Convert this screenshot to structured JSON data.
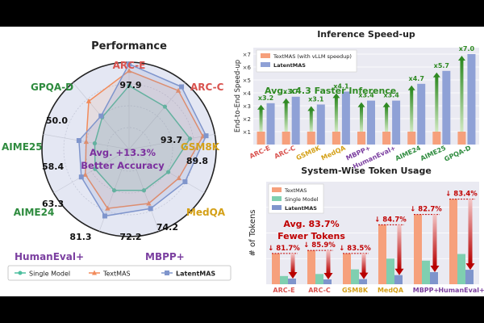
{
  "chart_data": [
    {
      "type": "radar",
      "title": "Performance",
      "categories": [
        "ARC-E",
        "ARC-C",
        "GSM8K",
        "MedQA",
        "MBPP+",
        "HumanEval+",
        "AIME24",
        "AIME25",
        "GPQA-D"
      ],
      "category_colors": [
        "#d9534f",
        "#d9534f",
        "#d4a017",
        "#d4a017",
        "#7b3fa0",
        "#7b3fa0",
        "#2e8b3e",
        "#2e8b3e",
        "#2e8b3e"
      ],
      "rlim": [
        0,
        100
      ],
      "series": [
        {
          "name": "Single Model",
          "color": "#4dbf9f",
          "marker": "circle",
          "values": [
            73,
            64,
            71,
            52,
            50,
            50,
            45,
            40,
            48
          ]
        },
        {
          "name": "TextMAS",
          "color": "#f28b5b",
          "marker": "triangle",
          "values": [
            90,
            88,
            86,
            66,
            66,
            72,
            58,
            50,
            72
          ]
        },
        {
          "name": "LatentMAS",
          "color": "#7f95cc",
          "marker": "square",
          "values": [
            97.9,
            93.7,
            89.8,
            74.2,
            72.2,
            81.3,
            63.3,
            58.4,
            50.0
          ]
        }
      ],
      "value_labels": [
        "97.9",
        "93.7",
        "89.8",
        "74.2",
        "72.2",
        "81.3",
        "63.3",
        "58.4",
        "50.0"
      ],
      "annotation": [
        "Avg. +13.3%",
        "Better Accuracy"
      ],
      "legend": [
        "Single Model",
        "TextMAS",
        "LatentMAS"
      ]
    },
    {
      "type": "bar",
      "title": "Inference Speed-up",
      "ylabel": "End-to-End Speed-up",
      "categories": [
        "ARC-E",
        "ARC-C",
        "GSM8K",
        "MedQA",
        "MBPP+",
        "HumanEval+",
        "AIME24",
        "AIME25",
        "GPQA-D"
      ],
      "category_colors": [
        "#d9534f",
        "#d9534f",
        "#d4a017",
        "#d4a017",
        "#7b3fa0",
        "#7b3fa0",
        "#2e8b3e",
        "#2e8b3e",
        "#2e8b3e"
      ],
      "ylim": [
        0,
        7.5
      ],
      "yticks": [
        1,
        2,
        3,
        4,
        5,
        6,
        7
      ],
      "ytick_labels": [
        "×1",
        "×2",
        "×3",
        "×4",
        "×5",
        "×6",
        "×7"
      ],
      "series": [
        {
          "name": "TextMAS (with vLLM speedup)",
          "color": "#f6a07c",
          "values": [
            1,
            1,
            1,
            1,
            1,
            1,
            1,
            1,
            1
          ]
        },
        {
          "name": "LatentMAS",
          "color": "#8fa1d6",
          "values": [
            3.2,
            3.7,
            3.1,
            4.1,
            3.4,
            3.4,
            4.7,
            5.7,
            7.0
          ]
        }
      ],
      "bar_labels": [
        "x3.2",
        "x3.7",
        "x3.1",
        "x4.1",
        "x3.4",
        "x3.4",
        "x4.7",
        "x5.7",
        "x7.0"
      ],
      "annotation": "Avg. x4.3 Faster Inference"
    },
    {
      "type": "bar",
      "title": "System-Wise Token Usage",
      "ylabel": "# of Tokens",
      "categories": [
        "ARC-E",
        "ARC-C",
        "GSM8K",
        "MedQA",
        "MBPP+",
        "HumanEval+"
      ],
      "category_colors": [
        "#d9534f",
        "#d9534f",
        "#d4a017",
        "#d4a017",
        "#7b3fa0",
        "#7b3fa0"
      ],
      "ylim": [
        0,
        10000
      ],
      "series": [
        {
          "name": "TextMAS",
          "color": "#f6a07c",
          "values": [
            3000,
            3300,
            3000,
            5800,
            6800,
            8300
          ]
        },
        {
          "name": "Single Model",
          "color": "#7fcfb0",
          "values": [
            800,
            1000,
            1450,
            2500,
            2300,
            2950
          ]
        },
        {
          "name": "LatentMAS",
          "color": "#7f95cc",
          "values": [
            550,
            470,
            500,
            890,
            1180,
            1410
          ]
        }
      ],
      "reduction_labels": [
        "↓ 81.7%",
        "↓ 85.9%",
        "↓ 83.5%",
        "↓ 84.7%",
        "↓ 82.7%",
        "↓ 83.4%"
      ],
      "annotation": [
        "Avg. 83.7%",
        "Fewer Tokens"
      ]
    }
  ]
}
